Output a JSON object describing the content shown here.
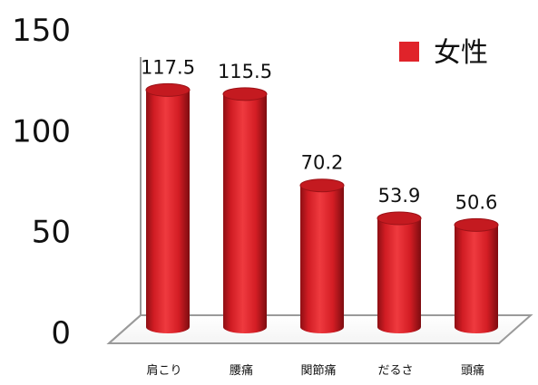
{
  "chart_data": {
    "type": "bar",
    "categories": [
      "肩こり",
      "腰痛",
      "関節痛",
      "だるさ",
      "頭痛"
    ],
    "series": [
      {
        "name": "女性",
        "values": [
          117.5,
          115.5,
          70.2,
          53.9,
          50.6
        ],
        "color": "#e0232a"
      }
    ],
    "data_labels": [
      "117.5",
      "115.5",
      "70.2",
      "53.9",
      "50.6"
    ],
    "yticks": [
      0,
      50,
      100,
      150
    ],
    "ylim": [
      0,
      150
    ],
    "legend": "top-right",
    "grid": false,
    "style": "3d-cylinder"
  },
  "legend": {
    "label": "女性"
  }
}
